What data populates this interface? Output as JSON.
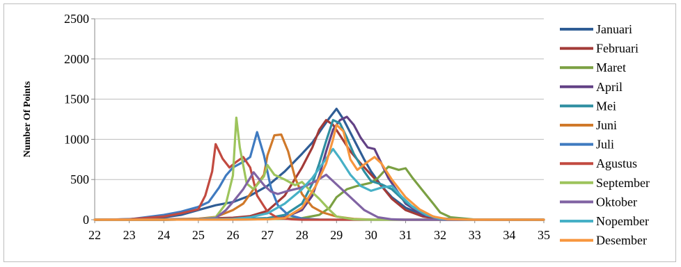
{
  "chart_data": {
    "type": "line",
    "title": "",
    "xlabel": "",
    "ylabel": "Number Of Points",
    "xlim": [
      22,
      35
    ],
    "ylim": [
      0,
      2500
    ],
    "x_ticks": [
      22,
      23,
      24,
      25,
      26,
      27,
      28,
      29,
      30,
      31,
      32,
      33,
      34,
      35
    ],
    "y_ticks": [
      0,
      500,
      1000,
      1500,
      2000,
      2500
    ],
    "grid": "horizontal",
    "legend_position": "right",
    "series": [
      {
        "name": "Januari",
        "color": "#2f5d95",
        "points": [
          [
            22,
            0
          ],
          [
            22.5,
            2
          ],
          [
            23,
            8
          ],
          [
            23.5,
            18
          ],
          [
            24,
            30
          ],
          [
            24.5,
            60
          ],
          [
            25,
            120
          ],
          [
            25.5,
            180
          ],
          [
            26,
            220
          ],
          [
            26.5,
            300
          ],
          [
            27,
            420
          ],
          [
            27.5,
            600
          ],
          [
            28,
            820
          ],
          [
            28.3,
            960
          ],
          [
            28.6,
            1150
          ],
          [
            28.8,
            1270
          ],
          [
            29,
            1380
          ],
          [
            29.2,
            1250
          ],
          [
            29.5,
            1000
          ],
          [
            29.8,
            750
          ],
          [
            30,
            600
          ],
          [
            30.3,
            420
          ],
          [
            30.6,
            280
          ],
          [
            31,
            150
          ],
          [
            31.5,
            60
          ],
          [
            32,
            15
          ],
          [
            33,
            2
          ],
          [
            35,
            0
          ]
        ]
      },
      {
        "name": "Februari",
        "color": "#a33b38",
        "points": [
          [
            22,
            0
          ],
          [
            23,
            2
          ],
          [
            24,
            5
          ],
          [
            25,
            12
          ],
          [
            26,
            25
          ],
          [
            26.5,
            45
          ],
          [
            27,
            110
          ],
          [
            27.5,
            300
          ],
          [
            28,
            650
          ],
          [
            28.3,
            900
          ],
          [
            28.5,
            1120
          ],
          [
            28.7,
            1240
          ],
          [
            28.9,
            1180
          ],
          [
            29.1,
            1050
          ],
          [
            29.4,
            850
          ],
          [
            29.7,
            700
          ],
          [
            30,
            560
          ],
          [
            30.3,
            420
          ],
          [
            30.6,
            260
          ],
          [
            31,
            120
          ],
          [
            31.5,
            40
          ],
          [
            32,
            8
          ],
          [
            33,
            1
          ],
          [
            35,
            0
          ]
        ]
      },
      {
        "name": "Maret",
        "color": "#7ba043",
        "points": [
          [
            22,
            0
          ],
          [
            24,
            0
          ],
          [
            26,
            2
          ],
          [
            27,
            6
          ],
          [
            28,
            20
          ],
          [
            28.5,
            60
          ],
          [
            28.8,
            150
          ],
          [
            29,
            280
          ],
          [
            29.3,
            380
          ],
          [
            29.6,
            420
          ],
          [
            30,
            460
          ],
          [
            30.2,
            520
          ],
          [
            30.5,
            660
          ],
          [
            30.8,
            620
          ],
          [
            31,
            640
          ],
          [
            31.2,
            520
          ],
          [
            31.5,
            360
          ],
          [
            31.8,
            200
          ],
          [
            32,
            90
          ],
          [
            32.3,
            30
          ],
          [
            33,
            3
          ],
          [
            35,
            0
          ]
        ]
      },
      {
        "name": "April",
        "color": "#624185",
        "points": [
          [
            22,
            0
          ],
          [
            24,
            0
          ],
          [
            26,
            2
          ],
          [
            27,
            6
          ],
          [
            27.5,
            30
          ],
          [
            28,
            120
          ],
          [
            28.3,
            300
          ],
          [
            28.5,
            550
          ],
          [
            28.7,
            850
          ],
          [
            28.9,
            1120
          ],
          [
            29.1,
            1240
          ],
          [
            29.3,
            1280
          ],
          [
            29.5,
            1180
          ],
          [
            29.7,
            1020
          ],
          [
            29.9,
            900
          ],
          [
            30.1,
            880
          ],
          [
            30.3,
            700
          ],
          [
            30.5,
            520
          ],
          [
            30.8,
            330
          ],
          [
            31,
            200
          ],
          [
            31.5,
            60
          ],
          [
            32,
            10
          ],
          [
            33,
            1
          ],
          [
            35,
            0
          ]
        ]
      },
      {
        "name": "Mei",
        "color": "#2e8ea1",
        "points": [
          [
            22,
            0
          ],
          [
            24,
            0
          ],
          [
            26,
            5
          ],
          [
            27,
            20
          ],
          [
            27.5,
            60
          ],
          [
            28,
            200
          ],
          [
            28.3,
            450
          ],
          [
            28.5,
            700
          ],
          [
            28.7,
            980
          ],
          [
            28.9,
            1240
          ],
          [
            29.1,
            1200
          ],
          [
            29.3,
            1020
          ],
          [
            29.5,
            820
          ],
          [
            29.8,
            600
          ],
          [
            30,
            480
          ],
          [
            30.3,
            440
          ],
          [
            30.6,
            380
          ],
          [
            31,
            220
          ],
          [
            31.5,
            80
          ],
          [
            32,
            15
          ],
          [
            33,
            1
          ],
          [
            35,
            0
          ]
        ]
      },
      {
        "name": "Juni",
        "color": "#d0792a",
        "points": [
          [
            22,
            0
          ],
          [
            24,
            0
          ],
          [
            24.5,
            5
          ],
          [
            25,
            12
          ],
          [
            25.5,
            35
          ],
          [
            26,
            120
          ],
          [
            26.3,
            200
          ],
          [
            26.6,
            380
          ],
          [
            26.9,
            560
          ],
          [
            27,
            800
          ],
          [
            27.2,
            1050
          ],
          [
            27.4,
            1060
          ],
          [
            27.6,
            850
          ],
          [
            27.8,
            520
          ],
          [
            28,
            320
          ],
          [
            28.3,
            160
          ],
          [
            28.6,
            90
          ],
          [
            29,
            40
          ],
          [
            29.5,
            10
          ],
          [
            30,
            2
          ],
          [
            31,
            0
          ],
          [
            35,
            0
          ]
        ]
      },
      {
        "name": "Juli",
        "color": "#3f7ac0",
        "points": [
          [
            22,
            0
          ],
          [
            23,
            5
          ],
          [
            24,
            60
          ],
          [
            24.5,
            100
          ],
          [
            25,
            160
          ],
          [
            25.3,
            220
          ],
          [
            25.6,
            400
          ],
          [
            25.8,
            550
          ],
          [
            26,
            650
          ],
          [
            26.3,
            720
          ],
          [
            26.5,
            780
          ],
          [
            26.7,
            1090
          ],
          [
            26.9,
            800
          ],
          [
            27.1,
            400
          ],
          [
            27.3,
            180
          ],
          [
            27.6,
            60
          ],
          [
            28,
            15
          ],
          [
            28.5,
            3
          ],
          [
            29,
            0
          ],
          [
            35,
            0
          ]
        ]
      },
      {
        "name": "Agustus",
        "color": "#c24a40",
        "points": [
          [
            22,
            0
          ],
          [
            23,
            5
          ],
          [
            24,
            40
          ],
          [
            24.5,
            80
          ],
          [
            25,
            130
          ],
          [
            25.2,
            300
          ],
          [
            25.4,
            600
          ],
          [
            25.5,
            940
          ],
          [
            25.7,
            760
          ],
          [
            25.9,
            650
          ],
          [
            26.1,
            720
          ],
          [
            26.3,
            780
          ],
          [
            26.5,
            650
          ],
          [
            26.7,
            300
          ],
          [
            27,
            100
          ],
          [
            27.3,
            20
          ],
          [
            27.7,
            5
          ],
          [
            28,
            0
          ],
          [
            35,
            0
          ]
        ]
      },
      {
        "name": "September",
        "color": "#9dc45c",
        "points": [
          [
            22,
            0
          ],
          [
            24,
            0
          ],
          [
            25,
            5
          ],
          [
            25.5,
            30
          ],
          [
            25.8,
            200
          ],
          [
            26,
            550
          ],
          [
            26.1,
            1270
          ],
          [
            26.2,
            900
          ],
          [
            26.4,
            450
          ],
          [
            26.6,
            380
          ],
          [
            26.9,
            540
          ],
          [
            27,
            680
          ],
          [
            27.2,
            560
          ],
          [
            27.5,
            500
          ],
          [
            27.8,
            430
          ],
          [
            28,
            470
          ],
          [
            28.2,
            380
          ],
          [
            28.5,
            260
          ],
          [
            28.8,
            120
          ],
          [
            29,
            40
          ],
          [
            29.5,
            5
          ],
          [
            30,
            0
          ],
          [
            35,
            0
          ]
        ]
      },
      {
        "name": "Oktober",
        "color": "#8063a3",
        "points": [
          [
            22,
            0
          ],
          [
            24,
            0
          ],
          [
            25,
            5
          ],
          [
            25.5,
            20
          ],
          [
            25.8,
            120
          ],
          [
            26,
            220
          ],
          [
            26.3,
            380
          ],
          [
            26.6,
            590
          ],
          [
            26.9,
            430
          ],
          [
            27.1,
            350
          ],
          [
            27.3,
            320
          ],
          [
            27.6,
            360
          ],
          [
            27.9,
            390
          ],
          [
            28.1,
            420
          ],
          [
            28.4,
            480
          ],
          [
            28.7,
            560
          ],
          [
            28.9,
            480
          ],
          [
            29.1,
            400
          ],
          [
            29.4,
            280
          ],
          [
            29.8,
            120
          ],
          [
            30.2,
            30
          ],
          [
            30.6,
            5
          ],
          [
            31,
            0
          ],
          [
            35,
            0
          ]
        ]
      },
      {
        "name": "Nopember",
        "color": "#46b0c6",
        "points": [
          [
            22,
            0
          ],
          [
            24,
            0
          ],
          [
            25,
            3
          ],
          [
            26,
            10
          ],
          [
            26.5,
            30
          ],
          [
            27,
            80
          ],
          [
            27.5,
            200
          ],
          [
            28,
            380
          ],
          [
            28.3,
            520
          ],
          [
            28.6,
            700
          ],
          [
            28.9,
            880
          ],
          [
            29.1,
            760
          ],
          [
            29.4,
            560
          ],
          [
            29.7,
            420
          ],
          [
            30,
            360
          ],
          [
            30.3,
            400
          ],
          [
            30.6,
            420
          ],
          [
            30.9,
            280
          ],
          [
            31.2,
            160
          ],
          [
            31.6,
            60
          ],
          [
            32,
            10
          ],
          [
            33,
            1
          ],
          [
            35,
            0
          ]
        ]
      },
      {
        "name": "Desember",
        "color": "#f7963e",
        "points": [
          [
            22,
            0
          ],
          [
            24,
            0
          ],
          [
            26,
            2
          ],
          [
            27,
            5
          ],
          [
            27.5,
            20
          ],
          [
            28,
            150
          ],
          [
            28.4,
            420
          ],
          [
            28.7,
            700
          ],
          [
            28.9,
            1000
          ],
          [
            29,
            1180
          ],
          [
            29.2,
            1100
          ],
          [
            29.4,
            750
          ],
          [
            29.6,
            620
          ],
          [
            29.9,
            720
          ],
          [
            30.1,
            780
          ],
          [
            30.3,
            700
          ],
          [
            30.6,
            500
          ],
          [
            31,
            280
          ],
          [
            31.4,
            130
          ],
          [
            31.8,
            40
          ],
          [
            32.2,
            8
          ],
          [
            33,
            1
          ],
          [
            35,
            0
          ]
        ]
      }
    ]
  }
}
